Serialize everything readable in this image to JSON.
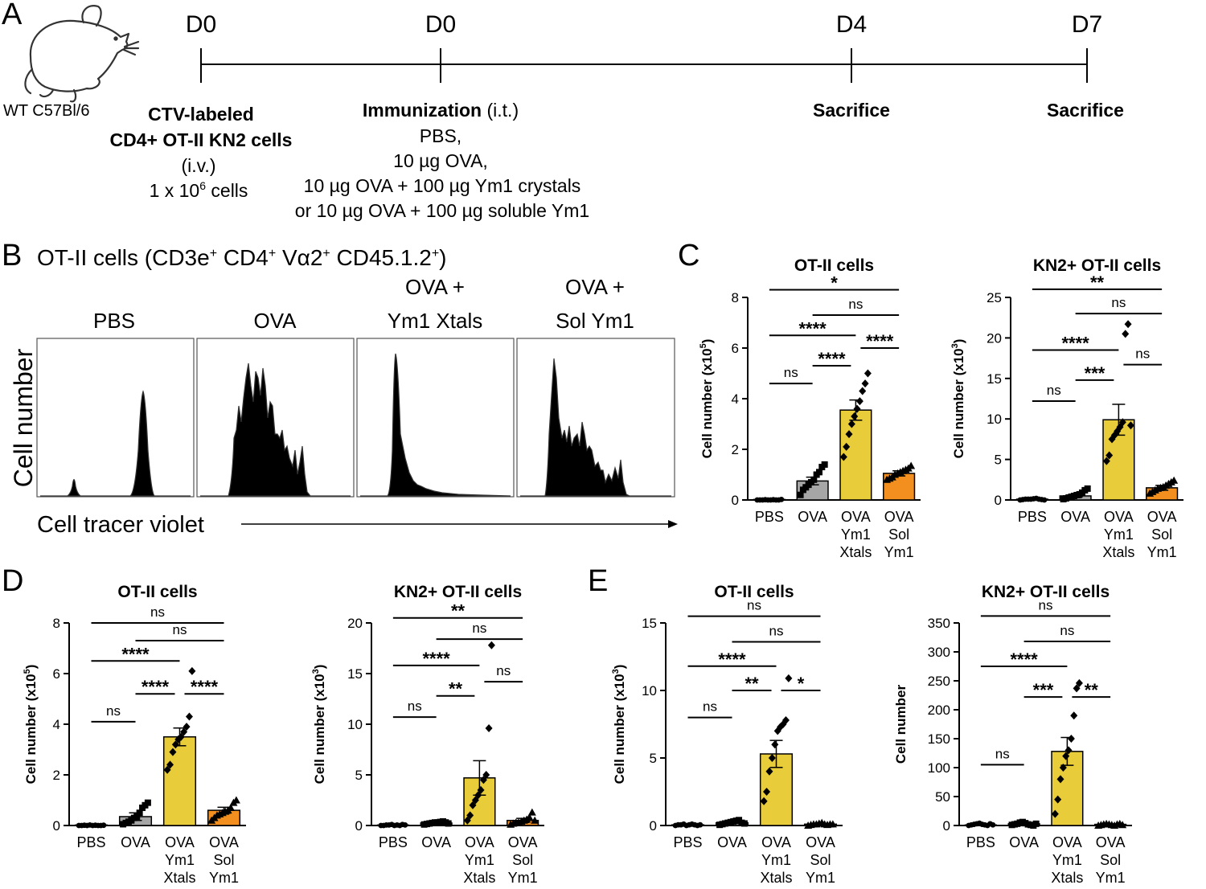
{
  "panel_labels": {
    "a": "A",
    "b": "B",
    "c": "C",
    "d": "D",
    "e": "E"
  },
  "timeline": {
    "mouse_label": "WT C57Bl/6",
    "days": [
      "D0",
      "D0",
      "D4",
      "D7"
    ],
    "step1": {
      "title1": "CTV-labeled",
      "title2": "CD4+ OT-II KN2 cells",
      "route": "(i.v.)",
      "dose_base": "1 x 10",
      "dose_exp": "6",
      "dose_unit": " cells"
    },
    "step2": {
      "title": "Immunization",
      "route": " (i.t.)",
      "l1": "PBS,",
      "l2": "10 µg OVA,",
      "l3": "10 µg OVA + 100 µg Ym1 crystals",
      "l4": "or 10 µg OVA + 100 µg soluble Ym1"
    },
    "step3": "Sacrifice",
    "step4": "Sacrifice"
  },
  "flow": {
    "title_base": "OT-II cells (CD3e",
    "title_cd4": " CD4",
    "title_va": " Vα2",
    "title_cd45": " CD45.1.2",
    "title_sup": "+",
    "title_end": ")",
    "conditions": [
      {
        "l1": "",
        "l2": "PBS"
      },
      {
        "l1": "",
        "l2": "OVA"
      },
      {
        "l1": "OVA +",
        "l2": "Ym1 Xtals"
      },
      {
        "l1": "OVA +",
        "l2": "Sol Ym1"
      }
    ],
    "y_label": "Cell number",
    "x_label": "Cell tracer violet"
  },
  "colors": {
    "pbs": "#d9d9d9",
    "ova": "#a6a6a6",
    "xtals": "#e8cc3a",
    "sol": "#f28f1e",
    "hist": "#8c8c8c"
  },
  "chart_data": [
    {
      "id": "C1",
      "type": "bar",
      "title": "OT-II cells",
      "ylabel_base": "Cell number (x10",
      "ylabel_exp": "5",
      "ylabel_end": ")",
      "ylim": [
        0,
        8
      ],
      "yticks": [
        "0",
        "2",
        "4",
        "6",
        "8"
      ],
      "categories": [
        [
          "PBS"
        ],
        [
          "OVA"
        ],
        [
          "OVA",
          "Ym1",
          "Xtals"
        ],
        [
          "OVA",
          "Sol",
          "Ym1"
        ]
      ],
      "values": [
        0.02,
        0.75,
        3.55,
        1.05
      ],
      "errors": [
        0.01,
        0.15,
        0.4,
        0.1
      ],
      "markers": [
        "circle",
        "square",
        "diamond",
        "triangle"
      ],
      "fills": [
        "pbs",
        "ova",
        "xtals",
        "sol"
      ],
      "points": [
        [
          0,
          0,
          0,
          0.01,
          0,
          0,
          0.01,
          0,
          0,
          0.02
        ],
        [
          0.2,
          0.4,
          0.5,
          0.6,
          0.7,
          0.8,
          1.0,
          1.1,
          1.3,
          1.4
        ],
        [
          1.7,
          2.1,
          2.6,
          3.0,
          3.3,
          3.6,
          3.9,
          4.3,
          4.6,
          5.0
        ],
        [
          0.8,
          0.85,
          0.9,
          1.0,
          1.05,
          1.1,
          1.15,
          1.2,
          1.25,
          1.35
        ]
      ],
      "sigs": [
        {
          "from": 0,
          "to": 3,
          "val": 8.3,
          "label": "*"
        },
        {
          "from": 1,
          "to": 3,
          "val": 7.3,
          "label": "ns"
        },
        {
          "from": 0,
          "to": 2,
          "val": 6.5,
          "label": "****"
        },
        {
          "from": 2,
          "to": 3,
          "val": 6.0,
          "label": "****"
        },
        {
          "from": 1,
          "to": 2,
          "val": 5.3,
          "label": "****"
        },
        {
          "from": 0,
          "to": 1,
          "val": 4.6,
          "label": "ns"
        }
      ]
    },
    {
      "id": "C2",
      "type": "bar",
      "title": "KN2+ OT-II cells",
      "ylabel_base": "Cell number (x10",
      "ylabel_exp": "3",
      "ylabel_end": ")",
      "ylim": [
        0,
        25
      ],
      "yticks": [
        "0",
        "5",
        "10",
        "15",
        "20",
        "25"
      ],
      "categories": [
        [
          "PBS"
        ],
        [
          "OVA"
        ],
        [
          "OVA",
          "Ym1",
          "Xtals"
        ],
        [
          "OVA",
          "Sol",
          "Ym1"
        ]
      ],
      "values": [
        0.1,
        0.5,
        9.9,
        1.5
      ],
      "errors": [
        0.05,
        0.2,
        1.9,
        0.3
      ],
      "markers": [
        "circle",
        "square",
        "diamond",
        "triangle"
      ],
      "fills": [
        "pbs",
        "ova",
        "xtals",
        "sol"
      ],
      "points": [
        [
          0,
          0.05,
          0.1,
          0.1,
          0.1,
          0.15,
          0.2,
          0.1,
          0.05,
          0
        ],
        [
          0.1,
          0.2,
          0.3,
          0.4,
          0.5,
          0.6,
          0.7,
          0.9,
          1.2,
          1.4
        ],
        [
          4.8,
          5.5,
          7.5,
          8.0,
          8.5,
          9.0,
          9.6,
          20.5,
          21.7,
          9.2
        ],
        [
          0.8,
          1.0,
          1.2,
          1.4,
          1.5,
          1.6,
          1.8,
          2.0,
          2.2,
          2.4
        ]
      ],
      "sigs": [
        {
          "from": 0,
          "to": 3,
          "val": 26.0,
          "label": "**"
        },
        {
          "from": 1,
          "to": 3,
          "val": 23.0,
          "label": "ns"
        },
        {
          "from": 0,
          "to": 2,
          "val": 18.5,
          "label": "****"
        },
        {
          "from": 2,
          "to": 3,
          "val": 16.7,
          "label": "ns"
        },
        {
          "from": 1,
          "to": 2,
          "val": 14.8,
          "label": "***"
        },
        {
          "from": 0,
          "to": 1,
          "val": 12.2,
          "label": "ns"
        }
      ]
    },
    {
      "id": "D1",
      "type": "bar",
      "title": "OT-II cells",
      "ylabel_base": "Cell number (x10",
      "ylabel_exp": "5",
      "ylabel_end": ")",
      "ylim": [
        0,
        8
      ],
      "yticks": [
        "0",
        "2",
        "4",
        "6",
        "8"
      ],
      "categories": [
        [
          "PBS"
        ],
        [
          "OVA"
        ],
        [
          "OVA",
          "Ym1",
          "Xtals"
        ],
        [
          "OVA",
          "Sol",
          "Ym1"
        ]
      ],
      "values": [
        0.02,
        0.35,
        3.5,
        0.6
      ],
      "errors": [
        0.01,
        0.15,
        0.35,
        0.12
      ],
      "markers": [
        "circle",
        "square",
        "diamond",
        "triangle"
      ],
      "fills": [
        "pbs",
        "ova",
        "xtals",
        "sol"
      ],
      "points": [
        [
          0,
          0,
          0.01,
          0,
          0.02,
          0,
          0.01,
          0,
          0,
          0.01
        ],
        [
          0.05,
          0.1,
          0.15,
          0.2,
          0.3,
          0.35,
          0.5,
          0.7,
          0.8,
          0.9
        ],
        [
          2.2,
          2.4,
          2.9,
          3.2,
          3.4,
          3.5,
          3.7,
          3.9,
          4.3,
          6.1
        ],
        [
          0.2,
          0.3,
          0.4,
          0.45,
          0.5,
          0.55,
          0.6,
          0.7,
          0.9,
          1.0
        ]
      ],
      "sigs": [
        {
          "from": 0,
          "to": 3,
          "val": 8.0,
          "label": "ns"
        },
        {
          "from": 1,
          "to": 3,
          "val": 7.3,
          "label": "ns"
        },
        {
          "from": 0,
          "to": 2,
          "val": 6.5,
          "label": "****"
        },
        {
          "from": 2,
          "to": 3,
          "val": 5.2,
          "label": "****"
        },
        {
          "from": 1,
          "to": 2,
          "val": 5.2,
          "label": "****"
        },
        {
          "from": 0,
          "to": 1,
          "val": 4.1,
          "label": "ns"
        }
      ]
    },
    {
      "id": "D2",
      "type": "bar",
      "title": "KN2+ OT-II cells",
      "ylabel_base": "Cell number (x10",
      "ylabel_exp": "3",
      "ylabel_end": ")",
      "ylim": [
        0,
        20
      ],
      "yticks": [
        "0",
        "5",
        "10",
        "15",
        "20"
      ],
      "categories": [
        [
          "PBS"
        ],
        [
          "OVA"
        ],
        [
          "OVA",
          "Ym1",
          "Xtals"
        ],
        [
          "OVA",
          "Sol",
          "Ym1"
        ]
      ],
      "values": [
        0.05,
        0.25,
        4.7,
        0.5
      ],
      "errors": [
        0.03,
        0.08,
        1.7,
        0.2
      ],
      "markers": [
        "circle",
        "square",
        "diamond",
        "triangle"
      ],
      "fills": [
        "pbs",
        "ova",
        "xtals",
        "sol"
      ],
      "points": [
        [
          0,
          0,
          0.05,
          0.05,
          0.1,
          0,
          0.05,
          0,
          0.1,
          0.05
        ],
        [
          0.1,
          0.15,
          0.2,
          0.25,
          0.3,
          0.3,
          0.35,
          0.4,
          0.3,
          0.2
        ],
        [
          0.5,
          1.0,
          2.0,
          2.5,
          3.0,
          3.5,
          4.5,
          5.0,
          9.6,
          17.8
        ],
        [
          0.1,
          0.2,
          0.3,
          0.3,
          0.4,
          0.5,
          0.6,
          0.8,
          1.3,
          0.5
        ]
      ],
      "sigs": [
        {
          "from": 0,
          "to": 3,
          "val": 20.5,
          "label": "**"
        },
        {
          "from": 1,
          "to": 3,
          "val": 18.4,
          "label": "ns"
        },
        {
          "from": 0,
          "to": 2,
          "val": 15.8,
          "label": "****"
        },
        {
          "from": 2,
          "to": 3,
          "val": 14.2,
          "label": "ns"
        },
        {
          "from": 1,
          "to": 2,
          "val": 12.8,
          "label": "**"
        },
        {
          "from": 0,
          "to": 1,
          "val": 10.7,
          "label": "ns"
        }
      ]
    },
    {
      "id": "E1",
      "type": "bar",
      "title": "OT-II cells",
      "ylabel_base": "Cell number (x10",
      "ylabel_exp": "3",
      "ylabel_end": ")",
      "ylim": [
        0,
        15
      ],
      "yticks": [
        "0",
        "5",
        "10",
        "15"
      ],
      "categories": [
        [
          "PBS"
        ],
        [
          "OVA"
        ],
        [
          "OVA",
          "Ym1",
          "Xtals"
        ],
        [
          "OVA",
          "Sol",
          "Ym1"
        ]
      ],
      "values": [
        0.05,
        0.2,
        5.3,
        0.1
      ],
      "errors": [
        0.02,
        0.05,
        1.0,
        0.03
      ],
      "markers": [
        "circle",
        "square",
        "diamond",
        "triangle"
      ],
      "fills": [
        "pbs",
        "ova",
        "xtals",
        "sol"
      ],
      "points": [
        [
          0,
          0.05,
          0.05,
          0.1,
          0,
          0.05,
          0.1,
          0.05,
          0,
          0.05
        ],
        [
          0.05,
          0.1,
          0.15,
          0.2,
          0.25,
          0.3,
          0.35,
          0.4,
          0.2,
          0.15
        ],
        [
          1.8,
          2.5,
          4.0,
          5.0,
          6.0,
          7.0,
          7.3,
          7.5,
          7.8,
          10.9
        ],
        [
          0,
          0.05,
          0.1,
          0.1,
          0.15,
          0.2,
          0.1,
          0.05,
          0.1,
          0.1
        ]
      ],
      "sigs": [
        {
          "from": 0,
          "to": 3,
          "val": 15.5,
          "label": "ns"
        },
        {
          "from": 1,
          "to": 3,
          "val": 13.6,
          "label": "ns"
        },
        {
          "from": 0,
          "to": 2,
          "val": 11.8,
          "label": "****"
        },
        {
          "from": 2,
          "to": 3,
          "val": 10.0,
          "label": "*"
        },
        {
          "from": 1,
          "to": 2,
          "val": 10.0,
          "label": "**"
        },
        {
          "from": 0,
          "to": 1,
          "val": 8.0,
          "label": "ns"
        }
      ]
    },
    {
      "id": "E2",
      "type": "bar",
      "title": "KN2+ OT-II cells",
      "ylabel_base": "Cell number",
      "ylabel_exp": "",
      "ylabel_end": "",
      "ylim": [
        0,
        350
      ],
      "yticks": [
        "0",
        "50",
        "100",
        "150",
        "200",
        "250",
        "300",
        "350"
      ],
      "categories": [
        [
          "PBS"
        ],
        [
          "OVA"
        ],
        [
          "OVA",
          "Ym1",
          "Xtals"
        ],
        [
          "OVA",
          "Sol",
          "Ym1"
        ]
      ],
      "values": [
        1,
        3,
        128,
        2
      ],
      "errors": [
        0.5,
        1.5,
        24,
        1
      ],
      "markers": [
        "circle",
        "square",
        "diamond",
        "triangle"
      ],
      "fills": [
        "pbs",
        "ova",
        "xtals",
        "sol"
      ],
      "points": [
        [
          0,
          1,
          2,
          3,
          4,
          2,
          1,
          0,
          3,
          1
        ],
        [
          1,
          2,
          3,
          5,
          6,
          4,
          2,
          1,
          0,
          3
        ],
        [
          20,
          45,
          80,
          100,
          120,
          130,
          150,
          190,
          237,
          246
        ],
        [
          0,
          1,
          2,
          3,
          2,
          1,
          0,
          2,
          3,
          1
        ]
      ],
      "sigs": [
        {
          "from": 0,
          "to": 3,
          "val": 362,
          "label": "ns"
        },
        {
          "from": 1,
          "to": 3,
          "val": 318,
          "label": "ns"
        },
        {
          "from": 0,
          "to": 2,
          "val": 275,
          "label": "****"
        },
        {
          "from": 2,
          "to": 3,
          "val": 222,
          "label": "**"
        },
        {
          "from": 1,
          "to": 2,
          "val": 222,
          "label": "***"
        },
        {
          "from": 0,
          "to": 1,
          "val": 105,
          "label": "ns"
        }
      ]
    }
  ]
}
